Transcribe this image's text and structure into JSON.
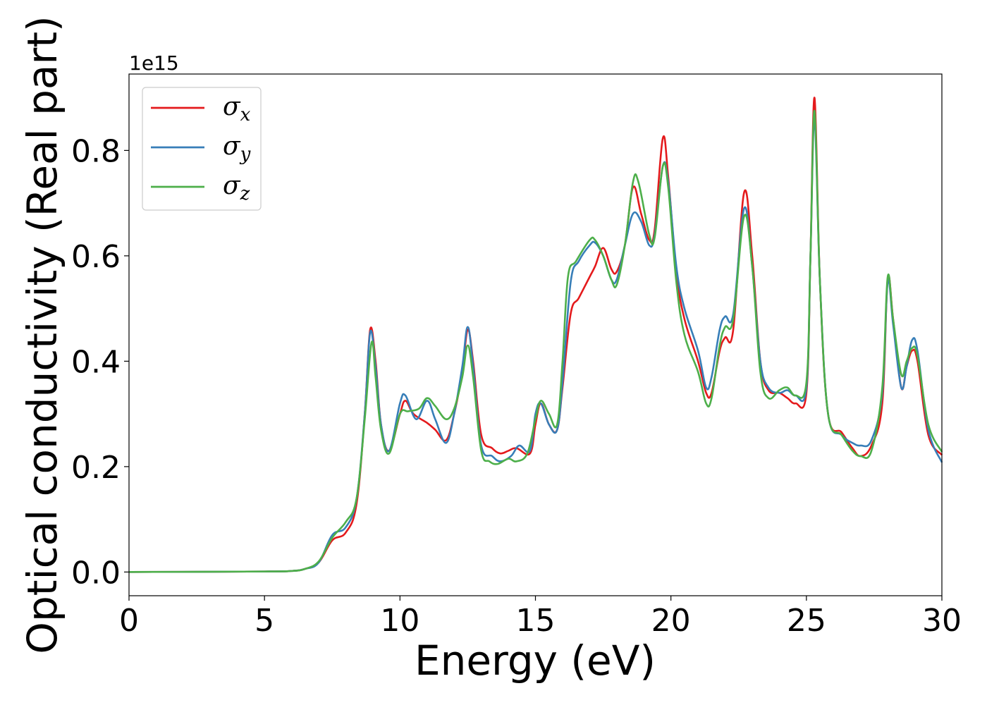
{
  "chart_data": {
    "type": "line",
    "title": "",
    "xlabel": "Energy (eV)",
    "ylabel": "Optical conductivity (Real part)",
    "y_offset_label": "1e15",
    "xlim": [
      0,
      30
    ],
    "ylim": [
      -0.045,
      0.945
    ],
    "xticks": [
      0,
      5,
      10,
      15,
      20,
      25,
      30
    ],
    "yticks": [
      0.0,
      0.2,
      0.4,
      0.6,
      0.8
    ],
    "xtick_labels": [
      "0",
      "5",
      "10",
      "15",
      "20",
      "25",
      "30"
    ],
    "ytick_labels": [
      "0.0",
      "0.2",
      "0.4",
      "0.6",
      "0.8"
    ],
    "grid": false,
    "legend_position": "top-left",
    "series": [
      {
        "name": "σx",
        "symbol": "σ",
        "subscript": "x",
        "color": "#e41a1c",
        "points": [
          [
            0,
            0
          ],
          [
            5,
            0.001
          ],
          [
            6,
            0.002
          ],
          [
            6.5,
            0.006
          ],
          [
            7,
            0.018
          ],
          [
            7.5,
            0.06
          ],
          [
            8,
            0.075
          ],
          [
            8.4,
            0.13
          ],
          [
            8.7,
            0.3
          ],
          [
            8.9,
            0.46
          ],
          [
            9.1,
            0.4
          ],
          [
            9.3,
            0.28
          ],
          [
            9.6,
            0.23
          ],
          [
            10,
            0.3
          ],
          [
            10.2,
            0.325
          ],
          [
            10.5,
            0.3
          ],
          [
            11,
            0.283
          ],
          [
            11.3,
            0.27
          ],
          [
            11.7,
            0.25
          ],
          [
            12,
            0.3
          ],
          [
            12.3,
            0.38
          ],
          [
            12.5,
            0.46
          ],
          [
            12.7,
            0.4
          ],
          [
            13,
            0.26
          ],
          [
            13.4,
            0.235
          ],
          [
            13.7,
            0.225
          ],
          [
            14,
            0.23
          ],
          [
            14.3,
            0.235
          ],
          [
            14.8,
            0.225
          ],
          [
            15,
            0.28
          ],
          [
            15.2,
            0.32
          ],
          [
            15.5,
            0.28
          ],
          [
            15.8,
            0.27
          ],
          [
            16,
            0.35
          ],
          [
            16.3,
            0.49
          ],
          [
            16.6,
            0.52
          ],
          [
            17,
            0.56
          ],
          [
            17.2,
            0.58
          ],
          [
            17.5,
            0.615
          ],
          [
            17.8,
            0.575
          ],
          [
            18,
            0.57
          ],
          [
            18.3,
            0.62
          ],
          [
            18.6,
            0.73
          ],
          [
            18.9,
            0.68
          ],
          [
            19.2,
            0.63
          ],
          [
            19.4,
            0.65
          ],
          [
            19.7,
            0.823
          ],
          [
            19.9,
            0.75
          ],
          [
            20.2,
            0.57
          ],
          [
            20.5,
            0.48
          ],
          [
            21,
            0.4
          ],
          [
            21.3,
            0.34
          ],
          [
            21.5,
            0.34
          ],
          [
            21.8,
            0.42
          ],
          [
            22,
            0.445
          ],
          [
            22.3,
            0.46
          ],
          [
            22.7,
            0.72
          ],
          [
            23,
            0.6
          ],
          [
            23.3,
            0.4
          ],
          [
            23.6,
            0.345
          ],
          [
            24,
            0.34
          ],
          [
            24.3,
            0.33
          ],
          [
            24.6,
            0.32
          ],
          [
            25,
            0.34
          ],
          [
            25.15,
            0.6
          ],
          [
            25.3,
            0.9
          ],
          [
            25.5,
            0.55
          ],
          [
            25.8,
            0.3
          ],
          [
            26.3,
            0.265
          ],
          [
            26.7,
            0.235
          ],
          [
            27,
            0.22
          ],
          [
            27.4,
            0.24
          ],
          [
            27.8,
            0.32
          ],
          [
            28,
            0.555
          ],
          [
            28.2,
            0.48
          ],
          [
            28.5,
            0.35
          ],
          [
            28.7,
            0.39
          ],
          [
            28.9,
            0.42
          ],
          [
            29.1,
            0.4
          ],
          [
            29.5,
            0.26
          ],
          [
            30,
            0.222
          ]
        ]
      },
      {
        "name": "σy",
        "symbol": "σ",
        "subscript": "y",
        "color": "#377eb8",
        "points": [
          [
            0,
            0
          ],
          [
            5,
            0.001
          ],
          [
            6,
            0.002
          ],
          [
            6.5,
            0.006
          ],
          [
            7,
            0.018
          ],
          [
            7.5,
            0.07
          ],
          [
            8,
            0.085
          ],
          [
            8.4,
            0.14
          ],
          [
            8.7,
            0.3
          ],
          [
            8.9,
            0.455
          ],
          [
            9.1,
            0.39
          ],
          [
            9.3,
            0.28
          ],
          [
            9.6,
            0.23
          ],
          [
            10,
            0.32
          ],
          [
            10.2,
            0.335
          ],
          [
            10.6,
            0.29
          ],
          [
            11,
            0.325
          ],
          [
            11.3,
            0.29
          ],
          [
            11.7,
            0.245
          ],
          [
            12,
            0.3
          ],
          [
            12.3,
            0.39
          ],
          [
            12.5,
            0.465
          ],
          [
            12.7,
            0.39
          ],
          [
            13,
            0.24
          ],
          [
            13.4,
            0.22
          ],
          [
            13.7,
            0.21
          ],
          [
            14.1,
            0.22
          ],
          [
            14.4,
            0.24
          ],
          [
            14.8,
            0.23
          ],
          [
            15,
            0.3
          ],
          [
            15.2,
            0.32
          ],
          [
            15.5,
            0.28
          ],
          [
            15.8,
            0.27
          ],
          [
            16,
            0.36
          ],
          [
            16.3,
            0.55
          ],
          [
            16.6,
            0.59
          ],
          [
            17,
            0.62
          ],
          [
            17.2,
            0.625
          ],
          [
            17.5,
            0.6
          ],
          [
            17.8,
            0.555
          ],
          [
            18,
            0.555
          ],
          [
            18.3,
            0.62
          ],
          [
            18.6,
            0.68
          ],
          [
            18.9,
            0.665
          ],
          [
            19.2,
            0.62
          ],
          [
            19.4,
            0.64
          ],
          [
            19.7,
            0.77
          ],
          [
            19.9,
            0.74
          ],
          [
            20.2,
            0.58
          ],
          [
            20.5,
            0.5
          ],
          [
            21,
            0.42
          ],
          [
            21.3,
            0.35
          ],
          [
            21.5,
            0.37
          ],
          [
            21.8,
            0.46
          ],
          [
            22,
            0.485
          ],
          [
            22.3,
            0.49
          ],
          [
            22.7,
            0.69
          ],
          [
            23,
            0.58
          ],
          [
            23.3,
            0.4
          ],
          [
            23.6,
            0.35
          ],
          [
            24,
            0.34
          ],
          [
            24.3,
            0.345
          ],
          [
            24.6,
            0.335
          ],
          [
            25,
            0.35
          ],
          [
            25.15,
            0.6
          ],
          [
            25.3,
            0.86
          ],
          [
            25.5,
            0.55
          ],
          [
            25.8,
            0.3
          ],
          [
            26.3,
            0.26
          ],
          [
            26.7,
            0.245
          ],
          [
            27,
            0.24
          ],
          [
            27.4,
            0.25
          ],
          [
            27.8,
            0.34
          ],
          [
            28,
            0.55
          ],
          [
            28.2,
            0.47
          ],
          [
            28.5,
            0.35
          ],
          [
            28.7,
            0.39
          ],
          [
            28.9,
            0.44
          ],
          [
            29.1,
            0.42
          ],
          [
            29.5,
            0.27
          ],
          [
            30,
            0.208
          ]
        ]
      },
      {
        "name": "σz",
        "symbol": "σ",
        "subscript": "z",
        "color": "#4daf4a",
        "points": [
          [
            0,
            0
          ],
          [
            5,
            0.001
          ],
          [
            6,
            0.002
          ],
          [
            6.5,
            0.006
          ],
          [
            7,
            0.02
          ],
          [
            7.5,
            0.065
          ],
          [
            8,
            0.095
          ],
          [
            8.4,
            0.14
          ],
          [
            8.7,
            0.29
          ],
          [
            8.95,
            0.435
          ],
          [
            9.1,
            0.37
          ],
          [
            9.3,
            0.27
          ],
          [
            9.6,
            0.225
          ],
          [
            10,
            0.3
          ],
          [
            10.3,
            0.305
          ],
          [
            10.7,
            0.31
          ],
          [
            11,
            0.33
          ],
          [
            11.3,
            0.315
          ],
          [
            11.7,
            0.29
          ],
          [
            12,
            0.31
          ],
          [
            12.3,
            0.37
          ],
          [
            12.5,
            0.43
          ],
          [
            12.7,
            0.37
          ],
          [
            13,
            0.23
          ],
          [
            13.3,
            0.21
          ],
          [
            13.6,
            0.205
          ],
          [
            14,
            0.215
          ],
          [
            14.3,
            0.21
          ],
          [
            14.7,
            0.225
          ],
          [
            15,
            0.29
          ],
          [
            15.2,
            0.325
          ],
          [
            15.5,
            0.3
          ],
          [
            15.8,
            0.28
          ],
          [
            16,
            0.4
          ],
          [
            16.2,
            0.56
          ],
          [
            16.5,
            0.59
          ],
          [
            17,
            0.63
          ],
          [
            17.2,
            0.63
          ],
          [
            17.5,
            0.6
          ],
          [
            17.8,
            0.555
          ],
          [
            18,
            0.545
          ],
          [
            18.3,
            0.62
          ],
          [
            18.6,
            0.74
          ],
          [
            18.8,
            0.74
          ],
          [
            19.2,
            0.64
          ],
          [
            19.4,
            0.635
          ],
          [
            19.7,
            0.77
          ],
          [
            19.9,
            0.73
          ],
          [
            20.2,
            0.55
          ],
          [
            20.5,
            0.45
          ],
          [
            21,
            0.38
          ],
          [
            21.3,
            0.32
          ],
          [
            21.5,
            0.33
          ],
          [
            21.8,
            0.43
          ],
          [
            22,
            0.465
          ],
          [
            22.3,
            0.48
          ],
          [
            22.7,
            0.675
          ],
          [
            23,
            0.58
          ],
          [
            23.3,
            0.38
          ],
          [
            23.6,
            0.33
          ],
          [
            24,
            0.345
          ],
          [
            24.3,
            0.35
          ],
          [
            24.6,
            0.335
          ],
          [
            25,
            0.36
          ],
          [
            25.15,
            0.6
          ],
          [
            25.3,
            0.875
          ],
          [
            25.5,
            0.55
          ],
          [
            25.8,
            0.3
          ],
          [
            26.3,
            0.26
          ],
          [
            26.7,
            0.23
          ],
          [
            27,
            0.22
          ],
          [
            27.4,
            0.23
          ],
          [
            27.8,
            0.35
          ],
          [
            28,
            0.56
          ],
          [
            28.2,
            0.48
          ],
          [
            28.5,
            0.375
          ],
          [
            28.7,
            0.4
          ],
          [
            28.9,
            0.425
          ],
          [
            29.1,
            0.41
          ],
          [
            29.5,
            0.28
          ],
          [
            30,
            0.228
          ]
        ]
      }
    ]
  }
}
